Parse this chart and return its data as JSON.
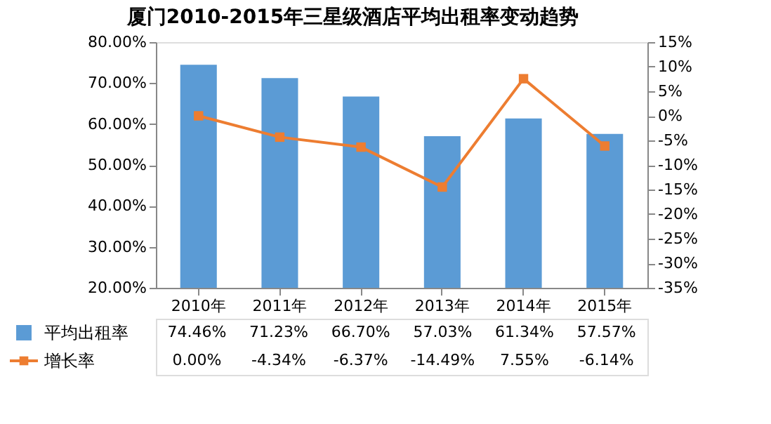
{
  "chart_data": {
    "type": "bar",
    "title": "厦门2010-2015年三星级酒店平均出租率变动趋势",
    "categories": [
      "2010年",
      "2011年",
      "2012年",
      "2013年",
      "2014年",
      "2015年"
    ],
    "series": [
      {
        "name": "平均出租率",
        "color": "#5b9bd5",
        "values": [
          74.46,
          71.23,
          66.7,
          57.03,
          61.34,
          57.57
        ],
        "value_labels": [
          "74.46%",
          "71.23%",
          "66.70%",
          "57.03%",
          "61.34%",
          "57.57%"
        ]
      },
      {
        "name": "增长率",
        "type": "line",
        "axis": "y2",
        "color": "#ed7d31",
        "marker": "square",
        "line_style": "solid",
        "values": [
          0,
          -4.34,
          -6.37,
          -14.49,
          7.55,
          -6.14
        ],
        "value_labels": [
          "0.00%",
          "-4.34%",
          "-6.37%",
          "-14.49%",
          "7.55%",
          "-6.14%"
        ]
      }
    ],
    "ylim": [
      20,
      80
    ],
    "yticks": [
      {
        "value": 20,
        "label": "20.00%"
      },
      {
        "value": 30,
        "label": "30.00%"
      },
      {
        "value": 40,
        "label": "40.00%"
      },
      {
        "value": 50,
        "label": "50.00%"
      },
      {
        "value": 60,
        "label": "60.00%"
      },
      {
        "value": 70,
        "label": "70.00%"
      },
      {
        "value": 80,
        "label": "80.00%"
      }
    ],
    "y2lim": [
      -35,
      15
    ],
    "y2ticks": [
      {
        "value": -35,
        "label": "-35%"
      },
      {
        "value": -30,
        "label": "-30%"
      },
      {
        "value": -25,
        "label": "-25%"
      },
      {
        "value": -20,
        "label": "-20%"
      },
      {
        "value": -15,
        "label": "-15%"
      },
      {
        "value": -10,
        "label": "-10%"
      },
      {
        "value": -5,
        "label": "-5%"
      },
      {
        "value": 0,
        "label": "0%"
      },
      {
        "value": 5,
        "label": "5%"
      },
      {
        "value": 10,
        "label": "10%"
      },
      {
        "value": 15,
        "label": "15%"
      }
    ],
    "legend": "bottom",
    "grid": false
  }
}
